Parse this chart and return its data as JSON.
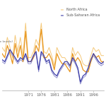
{
  "years": [
    1961,
    1962,
    1963,
    1964,
    1965,
    1966,
    1967,
    1968,
    1969,
    1970,
    1971,
    1972,
    1973,
    1974,
    1975,
    1976,
    1977,
    1978,
    1979,
    1980,
    1981,
    1982,
    1983,
    1984,
    1985,
    1986,
    1987,
    1988,
    1989,
    1990,
    1991,
    1992,
    1993,
    1994,
    1995,
    1996,
    1997,
    1998,
    1999,
    2000
  ],
  "north_africa_dark": [
    5.5,
    4.5,
    7.5,
    5.5,
    3.0,
    8.0,
    4.5,
    7.5,
    3.5,
    11.0,
    3.5,
    3.5,
    4.5,
    7.5,
    6.0,
    11.5,
    4.5,
    4.5,
    5.5,
    4.0,
    1.5,
    5.5,
    4.0,
    3.0,
    3.0,
    2.0,
    1.0,
    5.5,
    3.5,
    4.5,
    3.5,
    1.5,
    1.0,
    1.0,
    3.5,
    5.5,
    4.5,
    5.0,
    3.5,
    3.5
  ],
  "north_africa_light": [
    7.0,
    6.0,
    9.5,
    7.0,
    4.5,
    10.0,
    6.0,
    9.5,
    5.0,
    13.0,
    4.5,
    4.5,
    6.0,
    9.0,
    7.5,
    13.0,
    6.0,
    5.5,
    7.0,
    5.0,
    2.5,
    7.0,
    5.5,
    4.5,
    4.5,
    3.5,
    2.5,
    7.0,
    5.0,
    6.0,
    5.0,
    3.0,
    2.5,
    2.5,
    5.0,
    7.0,
    6.0,
    6.5,
    5.0,
    5.0
  ],
  "sub_saharan_dark": [
    4.0,
    3.5,
    5.0,
    6.5,
    5.5,
    4.5,
    3.5,
    4.5,
    4.0,
    5.5,
    3.5,
    3.5,
    5.0,
    6.0,
    1.5,
    6.0,
    5.0,
    3.5,
    4.0,
    1.5,
    0.5,
    0.0,
    1.5,
    2.5,
    3.5,
    3.5,
    2.5,
    4.5,
    3.5,
    2.0,
    -1.5,
    0.0,
    0.5,
    2.0,
    4.0,
    5.5,
    4.5,
    3.5,
    3.0,
    3.5
  ],
  "sub_saharan_light": [
    3.5,
    3.0,
    4.5,
    6.0,
    5.0,
    4.0,
    3.0,
    4.0,
    3.5,
    5.0,
    3.0,
    3.0,
    4.5,
    5.5,
    1.0,
    5.5,
    4.5,
    3.0,
    3.5,
    1.0,
    0.0,
    -0.5,
    1.0,
    2.0,
    3.0,
    3.0,
    2.0,
    4.0,
    3.0,
    1.5,
    -2.0,
    -0.5,
    0.0,
    1.5,
    3.5,
    5.0,
    4.0,
    3.0,
    2.5,
    3.0
  ],
  "north_africa_dark_color": "#e8961e",
  "north_africa_light_color": "#f5c97a",
  "sub_saharan_dark_color": "#3c3ca8",
  "sub_saharan_light_color": "#9090cc",
  "background_color": "#ffffff",
  "grid_color": "#cccccc",
  "xticks": [
    1971,
    1976,
    1981,
    1986,
    1991,
    1996
  ],
  "xlim": [
    1961,
    2000
  ],
  "ylim": [
    -3.5,
    14.0
  ],
  "legend_north_africa": "North Africa",
  "legend_sub_saharan": "Sub-Saharan Africa",
  "label_left": "n Africa (all income levels)"
}
